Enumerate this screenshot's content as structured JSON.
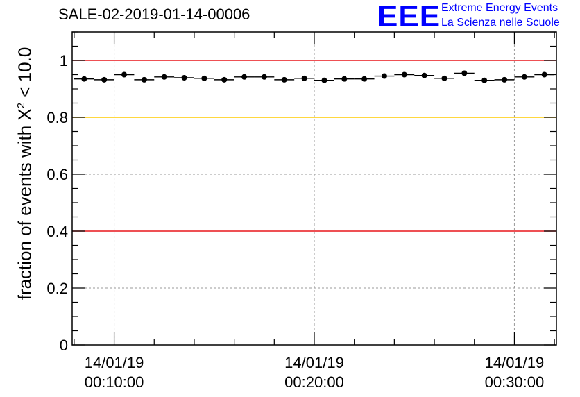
{
  "chart_data": {
    "type": "scatter",
    "title": "SALE-02-2019-01-14-00006",
    "ylabel_prefix": "fraction of events with ",
    "ylabel_symbol": "X",
    "ylabel_sup": "2",
    "ylabel_suffix": " < 10.0",
    "xlabel": "",
    "ylim": [
      0,
      1.1
    ],
    "yticks": [
      0,
      0.2,
      0.4,
      0.6,
      0.8,
      1
    ],
    "ytick_labels": [
      "0",
      "0.2",
      "0.4",
      "0.6",
      "0.8",
      "1"
    ],
    "xlim_minutes": [
      7.9,
      32.1
    ],
    "xticks_minutes": [
      10,
      20,
      30
    ],
    "xtick_labels": [
      {
        "date": "14/01/19",
        "time": "00:10:00"
      },
      {
        "date": "14/01/19",
        "time": "00:20:00"
      },
      {
        "date": "14/01/19",
        "time": "00:30:00"
      }
    ],
    "grid": true,
    "reference_lines": [
      {
        "y": 1.0,
        "color": "#e8161c",
        "name": "upper-limit"
      },
      {
        "y": 0.8,
        "color": "#ffcc00",
        "name": "warning-limit"
      },
      {
        "y": 0.4,
        "color": "#e8161c",
        "name": "lower-limit"
      }
    ],
    "bin_width_minutes": 1,
    "x_minutes": [
      8.5,
      9.5,
      10.5,
      11.5,
      12.5,
      13.5,
      14.5,
      15.5,
      16.5,
      17.5,
      18.5,
      19.5,
      20.5,
      21.5,
      22.5,
      23.5,
      24.5,
      25.5,
      26.5,
      27.5,
      28.5,
      29.5,
      30.5,
      31.5
    ],
    "values": [
      0.935,
      0.932,
      0.95,
      0.932,
      0.942,
      0.939,
      0.937,
      0.932,
      0.942,
      0.942,
      0.932,
      0.937,
      0.93,
      0.935,
      0.935,
      0.945,
      0.95,
      0.947,
      0.937,
      0.955,
      0.93,
      0.932,
      0.942,
      0.95
    ]
  },
  "logo": {
    "mark": "EEE",
    "line1": "Extreme Energy Events",
    "line2": "La Scienza nelle Scuole"
  },
  "colors": {
    "marker": "#000000",
    "axis": "#000000",
    "grid": "#999999",
    "logo": "#0000ff"
  }
}
